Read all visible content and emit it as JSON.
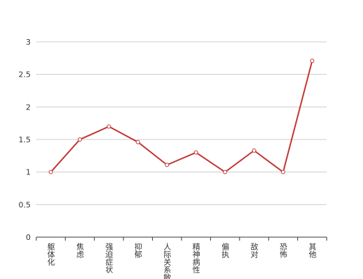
{
  "chart_data": {
    "type": "line",
    "categories": [
      "躯体化",
      "焦虑",
      "强迫症状",
      "抑郁",
      "人际关系敏感",
      "精神病性",
      "偏执",
      "敌对",
      "恐怖",
      "其他"
    ],
    "values": [
      1,
      1.5,
      1.7,
      1.46,
      1.11,
      1.3,
      1,
      1.33,
      1,
      2.71
    ],
    "color": "#c23531",
    "ylim": [
      0,
      3
    ],
    "yticks": [
      0,
      0.5,
      1,
      1.5,
      2,
      2.5,
      3
    ],
    "grid": true
  }
}
